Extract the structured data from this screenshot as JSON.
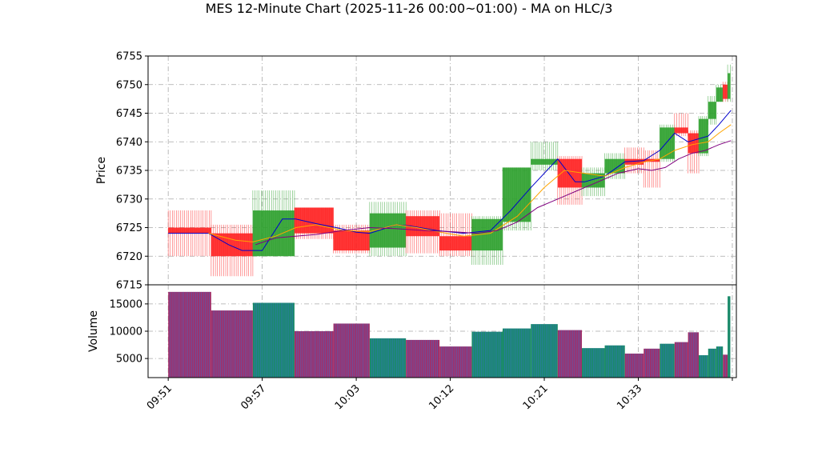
{
  "chart_data": {
    "type": "candlestick",
    "title": "MES 12-Minute Chart (2025-11-26 00:00~01:00) - MA on HLC/3",
    "price_panel": {
      "ylabel": "Price",
      "ylim": [
        6715,
        6755
      ],
      "yticks": [
        6715,
        6720,
        6725,
        6730,
        6735,
        6740,
        6745,
        6750,
        6755
      ],
      "grid": true
    },
    "volume_panel": {
      "ylabel": "Volume",
      "ylim": [
        1500,
        18500
      ],
      "yticks": [
        5000,
        10000,
        15000
      ],
      "yticklabels": [
        "5000",
        "10000",
        "15000"
      ]
    },
    "x": {
      "ticks": [
        0,
        7,
        14,
        21,
        28,
        35,
        42
      ],
      "ticklabels": [
        "09:51",
        "09:57",
        "10:03",
        "10:12",
        "10:21",
        "10:33",
        ""
      ],
      "range": [
        -1.5,
        42.3
      ]
    },
    "candles": [
      {
        "x": 0,
        "w": 3.2,
        "o": 6725,
        "h": 6728,
        "l": 6720,
        "c": 6724,
        "v": 17200
      },
      {
        "x": 3.2,
        "w": 3.1,
        "o": 6724,
        "h": 6725.5,
        "l": 6716.5,
        "c": 6720,
        "v": 13800
      },
      {
        "x": 6.3,
        "w": 3.1,
        "o": 6720,
        "h": 6731.5,
        "l": 6720,
        "c": 6728,
        "v": 15200
      },
      {
        "x": 9.4,
        "w": 2.9,
        "o": 6728.5,
        "h": 6728.5,
        "l": 6723,
        "c": 6724,
        "v": 10000
      },
      {
        "x": 12.3,
        "w": 2.7,
        "o": 6724.5,
        "h": 6725.5,
        "l": 6720.5,
        "c": 6721,
        "v": 11400
      },
      {
        "x": 15,
        "w": 2.7,
        "o": 6721.5,
        "h": 6729.5,
        "l": 6720,
        "c": 6727.5,
        "v": 8700
      },
      {
        "x": 17.7,
        "w": 2.5,
        "o": 6727,
        "h": 6728,
        "l": 6720.5,
        "c": 6723.5,
        "v": 8400
      },
      {
        "x": 20.2,
        "w": 2.4,
        "o": 6723.5,
        "h": 6727.5,
        "l": 6720,
        "c": 6721,
        "v": 7200
      },
      {
        "x": 22.6,
        "w": 2.3,
        "o": 6721,
        "h": 6727,
        "l": 6718.5,
        "c": 6726.5,
        "v": 9900
      },
      {
        "x": 24.9,
        "w": 2.1,
        "o": 6726,
        "h": 6735.5,
        "l": 6724.5,
        "c": 6735.5,
        "v": 10500
      },
      {
        "x": 27,
        "w": 2,
        "o": 6736,
        "h": 6740,
        "l": 6735,
        "c": 6737,
        "v": 11300
      },
      {
        "x": 29,
        "w": 1.8,
        "o": 6737,
        "h": 6737.5,
        "l": 6729,
        "c": 6732,
        "v": 10200
      },
      {
        "x": 30.8,
        "w": 1.7,
        "o": 6732,
        "h": 6735.5,
        "l": 6730.5,
        "c": 6734.5,
        "v": 6900
      },
      {
        "x": 32.5,
        "w": 1.5,
        "o": 6734.5,
        "h": 6738,
        "l": 6733.5,
        "c": 6737,
        "v": 7400
      },
      {
        "x": 34,
        "w": 1.4,
        "o": 6737,
        "h": 6739,
        "l": 6734.5,
        "c": 6736,
        "v": 5900
      },
      {
        "x": 35.4,
        "w": 1.2,
        "o": 6737,
        "h": 6738.5,
        "l": 6732,
        "c": 6736.5,
        "v": 6800
      },
      {
        "x": 36.6,
        "w": 1.1,
        "o": 6737,
        "h": 6743,
        "l": 6736.5,
        "c": 6742.5,
        "v": 7700
      },
      {
        "x": 37.7,
        "w": 1,
        "o": 6742.5,
        "h": 6745,
        "l": 6741,
        "c": 6741.5,
        "v": 8000
      },
      {
        "x": 38.7,
        "w": 0.8,
        "o": 6741.5,
        "h": 6742,
        "l": 6734.5,
        "c": 6738,
        "v": 9800
      },
      {
        "x": 39.5,
        "w": 0.7,
        "o": 6738,
        "h": 6744.5,
        "l": 6737.5,
        "c": 6744,
        "v": 5600
      },
      {
        "x": 40.2,
        "w": 0.6,
        "o": 6744,
        "h": 6748,
        "l": 6743,
        "c": 6747,
        "v": 6800
      },
      {
        "x": 40.8,
        "w": 0.5,
        "o": 6747,
        "h": 6750,
        "l": 6747,
        "c": 6749.5,
        "v": 7200
      },
      {
        "x": 41.3,
        "w": 0.35,
        "o": 6750,
        "h": 6750.5,
        "l": 6747,
        "c": 6747.5,
        "v": 5700
      },
      {
        "x": 41.65,
        "w": 0.2,
        "o": 6747.5,
        "h": 6753.5,
        "l": 6747,
        "c": 6752,
        "v": 16400
      }
    ],
    "moving_averages": [
      {
        "color": "#0000cc",
        "points": [
          [
            0,
            6724
          ],
          [
            1,
            6724
          ],
          [
            3,
            6724
          ],
          [
            4.5,
            6722
          ],
          [
            5.5,
            6721
          ],
          [
            7,
            6721
          ],
          [
            8.5,
            6726.5
          ],
          [
            9.5,
            6726.5
          ],
          [
            11,
            6725.7
          ],
          [
            12.5,
            6725
          ],
          [
            14,
            6724.2
          ],
          [
            15,
            6724
          ],
          [
            17,
            6725.5
          ],
          [
            18,
            6725.3
          ],
          [
            20,
            6724.5
          ],
          [
            22,
            6724
          ],
          [
            24,
            6724.5
          ],
          [
            25.5,
            6728
          ],
          [
            27,
            6732
          ],
          [
            29,
            6737
          ],
          [
            30.3,
            6733
          ],
          [
            31,
            6733
          ],
          [
            32.5,
            6734
          ],
          [
            34,
            6736.5
          ],
          [
            35.4,
            6736.7
          ],
          [
            36.6,
            6738.5
          ],
          [
            37.7,
            6741.5
          ],
          [
            38.7,
            6740
          ],
          [
            40.2,
            6741
          ],
          [
            41,
            6743
          ],
          [
            41.9,
            6745.5
          ]
        ]
      },
      {
        "color": "#ffa500",
        "points": [
          [
            3,
            6724
          ],
          [
            5,
            6722.8
          ],
          [
            6.3,
            6722.5
          ],
          [
            8,
            6723.5
          ],
          [
            9.5,
            6725
          ],
          [
            11,
            6725.5
          ],
          [
            13,
            6724.5
          ],
          [
            15,
            6724.3
          ],
          [
            17,
            6725.5
          ],
          [
            18.5,
            6725
          ],
          [
            20,
            6724.3
          ],
          [
            22,
            6723.5
          ],
          [
            24,
            6724
          ],
          [
            26,
            6727
          ],
          [
            28,
            6732
          ],
          [
            29.5,
            6735
          ],
          [
            31,
            6734.5
          ],
          [
            32.5,
            6734
          ],
          [
            34,
            6735.5
          ],
          [
            35.5,
            6736.5
          ],
          [
            36.6,
            6737
          ],
          [
            37.7,
            6738.5
          ],
          [
            39,
            6739.5
          ],
          [
            40.2,
            6740
          ],
          [
            41,
            6741.5
          ],
          [
            41.9,
            6743
          ]
        ]
      },
      {
        "color": "#800080",
        "points": [
          [
            6.5,
            6722
          ],
          [
            8,
            6723.2
          ],
          [
            9.5,
            6723.5
          ],
          [
            11,
            6723.8
          ],
          [
            13,
            6724.5
          ],
          [
            15,
            6725
          ],
          [
            17,
            6724.8
          ],
          [
            19,
            6724.5
          ],
          [
            21,
            6724.3
          ],
          [
            23,
            6724
          ],
          [
            24.5,
            6724.5
          ],
          [
            26,
            6726
          ],
          [
            27.5,
            6728.5
          ],
          [
            29,
            6730
          ],
          [
            30.5,
            6731.5
          ],
          [
            32,
            6733
          ],
          [
            33.5,
            6734.5
          ],
          [
            35,
            6735.3
          ],
          [
            36,
            6735
          ],
          [
            37,
            6735.5
          ],
          [
            38,
            6737
          ],
          [
            39,
            6738
          ],
          [
            40,
            6738.5
          ],
          [
            41,
            6739.5
          ],
          [
            41.9,
            6740.2
          ]
        ]
      }
    ]
  }
}
